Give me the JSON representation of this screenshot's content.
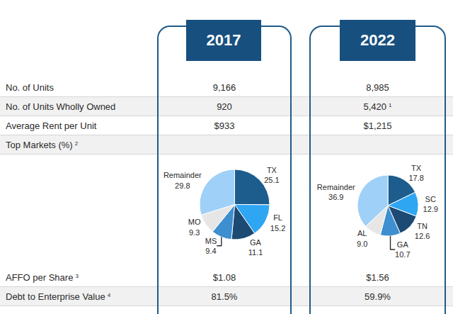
{
  "table": {
    "columns": [
      "2017",
      "2022"
    ],
    "rows": [
      {
        "label": "No. of Units",
        "values": [
          "9,166",
          "8,985"
        ]
      },
      {
        "label": "No. of Units Wholly Owned",
        "values": [
          "920",
          "5,420"
        ],
        "value_notes": [
          null,
          "1"
        ]
      },
      {
        "label": "Average Rent per Unit",
        "values": [
          "$933",
          "$1,215"
        ]
      },
      {
        "label": "Top Markets (%)",
        "note": "2"
      },
      {
        "label": "AFFO per Share",
        "note": "3",
        "values": [
          "$1.08",
          "$1.56"
        ]
      },
      {
        "label": "Debt to Enterprise Value",
        "note": "4",
        "values": [
          "81.5%",
          "59.9%"
        ]
      }
    ]
  },
  "chart_data": [
    {
      "type": "pie",
      "categories": [
        "TX",
        "FL",
        "GA",
        "MS",
        "MO",
        "Remainder"
      ],
      "values": [
        25.1,
        15.2,
        11.1,
        9.4,
        9.3,
        29.8
      ],
      "value_labels": [
        "25.1",
        "15.2",
        "11.1",
        "9.4",
        "9.3",
        "29.8"
      ],
      "colors": [
        "#1c5d8e",
        "#2ea6f2",
        "#1d4a73",
        "#3e8fd0",
        "#e6e6e6",
        "#9fd0f7"
      ],
      "data_labels": true
    },
    {
      "type": "pie",
      "categories": [
        "TX",
        "SC",
        "TN",
        "GA",
        "AL",
        "Remainder"
      ],
      "values": [
        17.8,
        12.9,
        12.6,
        10.7,
        9.0,
        36.9
      ],
      "value_labels": [
        "17.8",
        "12.9",
        "12.6",
        "10.7",
        "9.0",
        "36.9"
      ],
      "colors": [
        "#1c5d8e",
        "#2ea6f2",
        "#1d4a73",
        "#3e8fd0",
        "#e6e6e6",
        "#9fd0f7"
      ],
      "data_labels": true
    }
  ]
}
